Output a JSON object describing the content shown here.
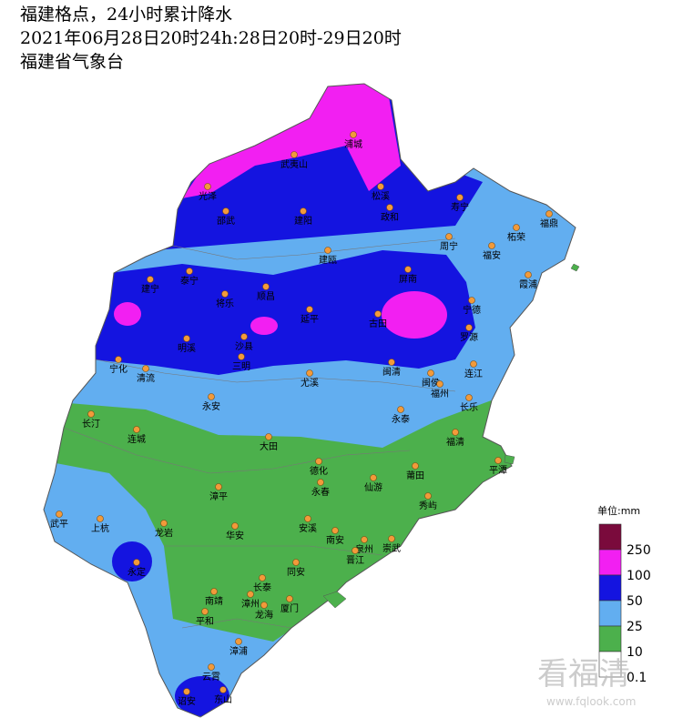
{
  "header": {
    "lines": [
      "福建格点，24小时累计降水",
      "2021年06月28日20时24h:28日20时-29日20时",
      "福建省气象台"
    ]
  },
  "legend": {
    "unit": "单位:mm",
    "bands": [
      {
        "color": "#7a0a3c"
      },
      {
        "color": "#f21ff2"
      },
      {
        "color": "#1414e0"
      },
      {
        "color": "#62aef0"
      },
      {
        "color": "#4cb04c"
      },
      {
        "color": "#ffffff"
      }
    ],
    "thresholds": [
      250,
      100,
      50,
      25,
      10,
      0.1
    ]
  },
  "cities": [
    "浦城",
    "武夷山",
    "光泽",
    "松溪",
    "政和",
    "寿宁",
    "福鼎",
    "邵武",
    "建阳",
    "柘荣",
    "周宁",
    "福安",
    "建瓯",
    "霞浦",
    "泰宁",
    "屏南",
    "建宁",
    "将乐",
    "顺昌",
    "宁德",
    "延平",
    "古田",
    "明溪",
    "沙县",
    "罗源",
    "三明",
    "宁化",
    "清流",
    "尤溪",
    "闽清",
    "闽侯",
    "连江",
    "福州",
    "永安",
    "长乐",
    "长汀",
    "永泰",
    "连城",
    "福清",
    "大田",
    "德化",
    "莆田",
    "平潭",
    "仙游",
    "永春",
    "漳平",
    "秀屿",
    "武平",
    "上杭",
    "龙岩",
    "华安",
    "安溪",
    "南安",
    "泉州",
    "崇武",
    "晋江",
    "永定",
    "同安",
    "长泰",
    "南靖",
    "漳州",
    "厦门",
    "龙海",
    "平和",
    "漳浦",
    "云霄",
    "诏安",
    "东山"
  ],
  "watermark": {
    "logo": "看福清",
    "url": "www.fqlook.com"
  }
}
